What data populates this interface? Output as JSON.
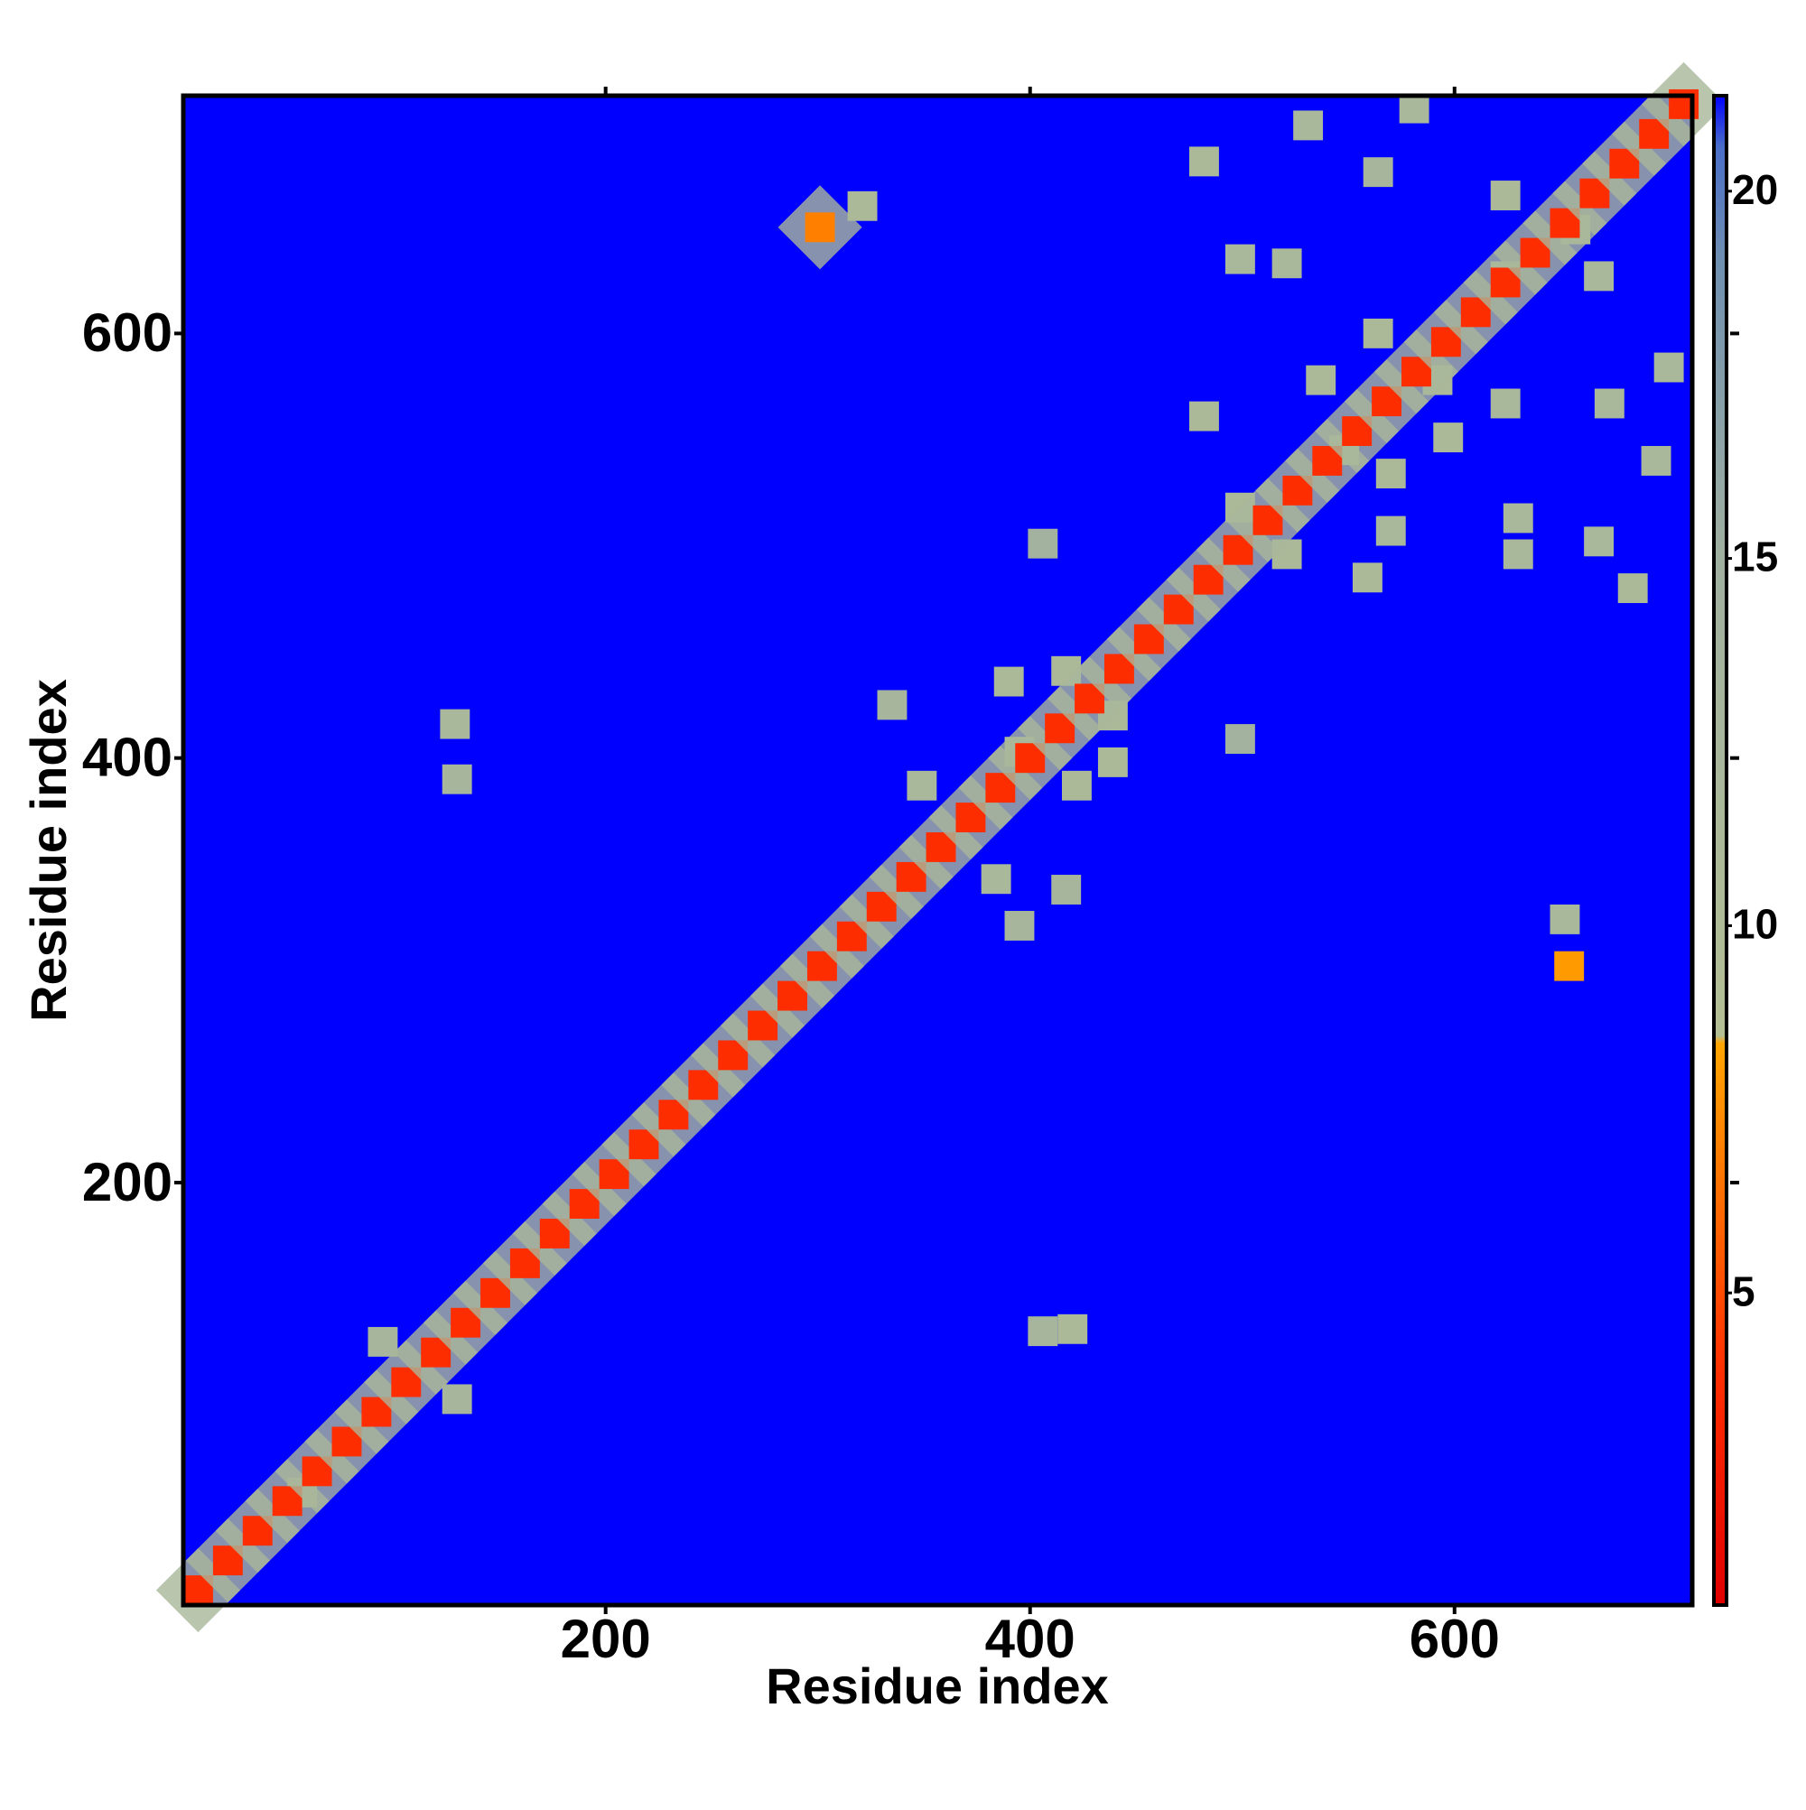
{
  "chart_data": {
    "type": "heatmap",
    "xlabel": "Residue index",
    "ylabel": "Residue index",
    "xlim": [
      1,
      712
    ],
    "ylim": [
      1,
      712
    ],
    "xticks": [
      200,
      400,
      600
    ],
    "yticks": [
      200,
      400,
      600
    ],
    "zlim": [
      0.75,
      21.3
    ],
    "zticks": [
      5,
      10,
      15,
      20
    ],
    "colorscale": [
      {
        "value": 0.75,
        "color": "#e00000"
      },
      {
        "value": 4,
        "color": "#ff3000"
      },
      {
        "value": 8.4,
        "color": "#ffa500"
      },
      {
        "value": 8.5,
        "color": "#b4bf94"
      },
      {
        "value": 15,
        "color": "#a0b0a0"
      },
      {
        "value": 19,
        "color": "#7090b0"
      },
      {
        "value": 20.6,
        "color": "#4a6ec8"
      },
      {
        "value": 21.3,
        "color": "#0000ff"
      }
    ],
    "x": [
      301,
      321,
      129,
      130,
      406,
      420,
      652,
      654,
      499,
      406,
      335,
      349,
      384,
      417,
      395,
      390,
      417,
      439,
      439,
      422,
      395,
      130,
      95,
      57,
      482,
      531,
      581,
      564,
      499,
      521,
      624,
      657,
      668,
      482,
      499,
      521,
      559,
      570,
      537,
      564,
      592,
      597,
      570,
      548,
      624,
      624,
      630,
      630,
      668,
      684,
      673,
      695,
      701,
      8,
      22,
      36,
      50,
      64,
      78,
      92,
      106,
      120,
      134,
      148,
      162,
      176,
      190,
      204,
      218,
      232,
      246,
      260,
      274,
      288,
      302,
      316,
      330,
      344,
      358,
      372,
      386,
      400,
      414,
      428,
      442,
      456,
      470,
      484,
      498,
      512,
      526,
      540,
      554,
      568,
      582,
      596,
      610,
      624,
      638,
      652,
      666,
      680,
      694,
      708
    ],
    "y": [
      650,
      660,
      416,
      390,
      130,
      131,
      324,
      302,
      409,
      501,
      425,
      387,
      343,
      338,
      321,
      436,
      441,
      420,
      398,
      387,
      403,
      98,
      125,
      54,
      681,
      698,
      706,
      676,
      635,
      633,
      665,
      649,
      627,
      561,
      518,
      496,
      485,
      507,
      578,
      600,
      578,
      551,
      534,
      545,
      627,
      567,
      513,
      496,
      502,
      480,
      567,
      540,
      584,
      8,
      22,
      36,
      50,
      64,
      78,
      92,
      106,
      120,
      134,
      148,
      162,
      176,
      190,
      204,
      218,
      232,
      246,
      260,
      274,
      288,
      302,
      316,
      330,
      344,
      358,
      372,
      386,
      400,
      414,
      428,
      442,
      456,
      470,
      484,
      498,
      512,
      526,
      540,
      554,
      568,
      582,
      596,
      610,
      624,
      638,
      652,
      666,
      680,
      694,
      708
    ],
    "values": [
      7,
      11,
      12,
      13,
      13,
      11,
      12,
      8,
      14,
      14,
      13,
      12,
      12,
      13,
      13,
      11,
      11,
      11,
      11,
      11,
      12,
      13,
      13,
      13,
      11,
      12,
      12,
      13,
      12,
      12,
      11,
      11,
      12,
      11,
      11,
      11,
      11,
      12,
      11,
      11,
      11,
      11,
      11,
      12,
      11,
      12,
      12,
      12,
      12,
      11,
      12,
      12,
      12,
      3.8,
      3.8,
      3.8,
      3.8,
      3.8,
      3.8,
      3.8,
      3.8,
      3.8,
      3.8,
      3.8,
      3.8,
      3.8,
      3.8,
      3.8,
      3.8,
      3.8,
      3.8,
      3.8,
      3.8,
      3.8,
      3.8,
      3.8,
      3.8,
      3.8,
      3.8,
      3.8,
      3.8,
      3.8,
      3.8,
      3.8,
      3.8,
      3.8,
      3.8,
      3.8,
      3.8,
      3.8,
      3.8,
      3.8,
      3.8,
      3.8,
      3.8,
      3.8,
      3.8,
      3.8,
      3.8,
      3.8,
      3.8,
      3.8,
      3.8,
      3.8
    ]
  }
}
